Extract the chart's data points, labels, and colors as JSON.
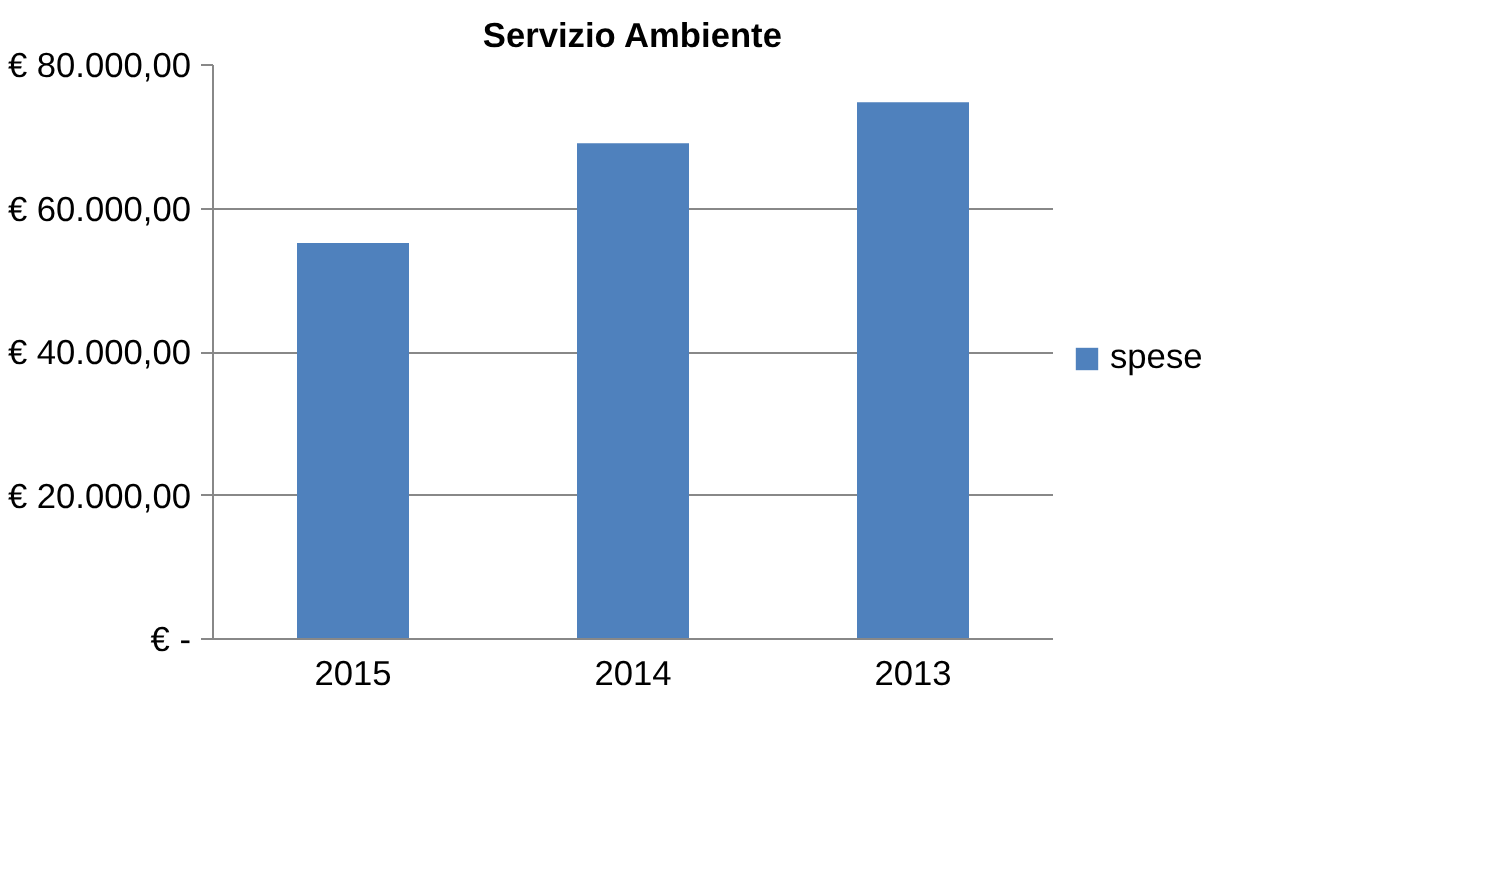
{
  "chart_data": {
    "type": "bar",
    "title": "Servizio Ambiente",
    "categories": [
      "2015",
      "2014",
      "2013"
    ],
    "series": [
      {
        "name": "spese",
        "color": "#4f81bd",
        "values": [
          55200,
          69100,
          74800
        ]
      }
    ],
    "ylim": [
      0,
      80000
    ],
    "yticks": [
      {
        "value": 0,
        "label": "€ -"
      },
      {
        "value": 20000,
        "label": "€ 20.000,00"
      },
      {
        "value": 40000,
        "label": "€ 40.000,00"
      },
      {
        "value": 60000,
        "label": "€ 60.000,00"
      },
      {
        "value": 80000,
        "label": "€ 80.000,00"
      }
    ],
    "grid": "y",
    "legend": "right"
  }
}
